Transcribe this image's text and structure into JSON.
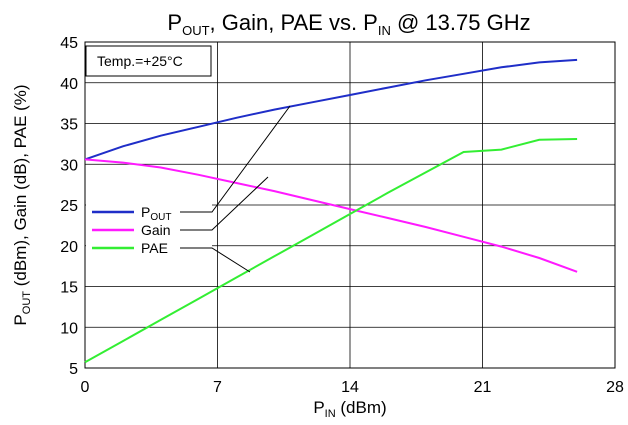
{
  "chart_data": {
    "type": "line",
    "title": {
      "main": "P",
      "main_sub": "OUT",
      "rest": ", Gain, PAE vs. P",
      "rest_sub": "IN",
      "tail": "  @ 13.75 GHz"
    },
    "xlabel": {
      "main": "P",
      "sub": "IN",
      "rest": " (dBm)"
    },
    "ylabel": {
      "main": "P",
      "sub": "OUT",
      "rest": " (dBm), Gain (dB), PAE (%)"
    },
    "annotation": "Temp.=+25°C",
    "xlim": [
      0,
      28
    ],
    "ylim": [
      5,
      45
    ],
    "xticks": [
      0,
      7,
      14,
      21,
      28
    ],
    "yticks": [
      5,
      10,
      15,
      20,
      25,
      30,
      35,
      40,
      45
    ],
    "grid": true,
    "legend_position": "center-left",
    "series": [
      {
        "name": "P",
        "name_sub": "OUT",
        "color": "#1f2ec8",
        "x": [
          0,
          2,
          4,
          6,
          8,
          10,
          12,
          14,
          16,
          18,
          20,
          22,
          24,
          26
        ],
        "y": [
          30.6,
          32.2,
          33.5,
          34.6,
          35.7,
          36.7,
          37.6,
          38.5,
          39.4,
          40.3,
          41.1,
          41.9,
          42.5,
          42.8
        ]
      },
      {
        "name": "Gain",
        "name_sub": "",
        "color": "#ff1aff",
        "x": [
          0,
          2,
          4,
          6,
          8,
          10,
          12,
          14,
          16,
          18,
          20,
          22,
          24,
          26
        ],
        "y": [
          30.6,
          30.2,
          29.6,
          28.7,
          27.7,
          26.7,
          25.6,
          24.5,
          23.4,
          22.3,
          21.1,
          19.9,
          18.5,
          16.8
        ]
      },
      {
        "name": "PAE",
        "name_sub": "",
        "color": "#33ee33",
        "x": [
          0,
          2,
          4,
          6,
          8,
          10,
          12,
          14,
          16,
          18,
          20,
          22,
          24,
          26
        ],
        "y": [
          5.7,
          8.3,
          10.9,
          13.5,
          16.1,
          18.7,
          21.3,
          23.9,
          26.5,
          29.0,
          31.5,
          31.8,
          33.0,
          33.1
        ]
      }
    ]
  }
}
